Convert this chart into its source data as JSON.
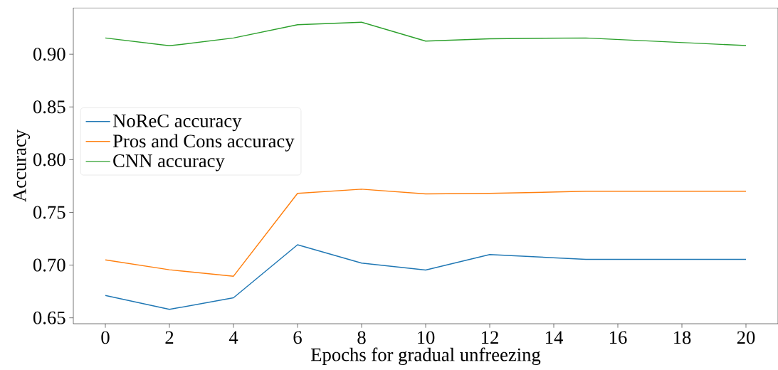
{
  "chart_data": {
    "type": "line",
    "xlabel": "Epochs for gradual unfreezing",
    "ylabel": "Accuracy",
    "x": [
      0,
      2,
      4,
      6,
      8,
      10,
      12,
      15,
      20
    ],
    "series": [
      {
        "name": "NoReC accuracy",
        "color": "#1f77b4",
        "values": [
          0.6712,
          0.658,
          0.669,
          0.7193,
          0.7019,
          0.6953,
          0.71,
          0.7055,
          0.7055
        ]
      },
      {
        "name": "Pros and Cons accuracy",
        "color": "#ff7f0e",
        "values": [
          0.705,
          0.6956,
          0.6895,
          0.768,
          0.772,
          0.7675,
          0.768,
          0.77,
          0.77
        ]
      },
      {
        "name": "CNN accuracy",
        "color": "#2ca02c",
        "values": [
          0.9154,
          0.908,
          0.9154,
          0.928,
          0.9304,
          0.9125,
          0.9147,
          0.9154,
          0.9082
        ]
      }
    ],
    "xlim": [
      -1,
      21
    ],
    "ylim": [
      0.6444,
      0.944
    ],
    "xticks": [
      0,
      2,
      4,
      6,
      8,
      10,
      12,
      14,
      16,
      18,
      20
    ],
    "yticks": [
      {
        "value": 0.65,
        "label": "0.65"
      },
      {
        "value": 0.7,
        "label": "0.70"
      },
      {
        "value": 0.75,
        "label": "0.75"
      },
      {
        "value": 0.8,
        "label": "0.80"
      },
      {
        "value": 0.85,
        "label": "0.85"
      },
      {
        "value": 0.9,
        "label": "0.90"
      }
    ],
    "legend": "left",
    "grid": false,
    "marker": "none",
    "line_style": "solid"
  }
}
